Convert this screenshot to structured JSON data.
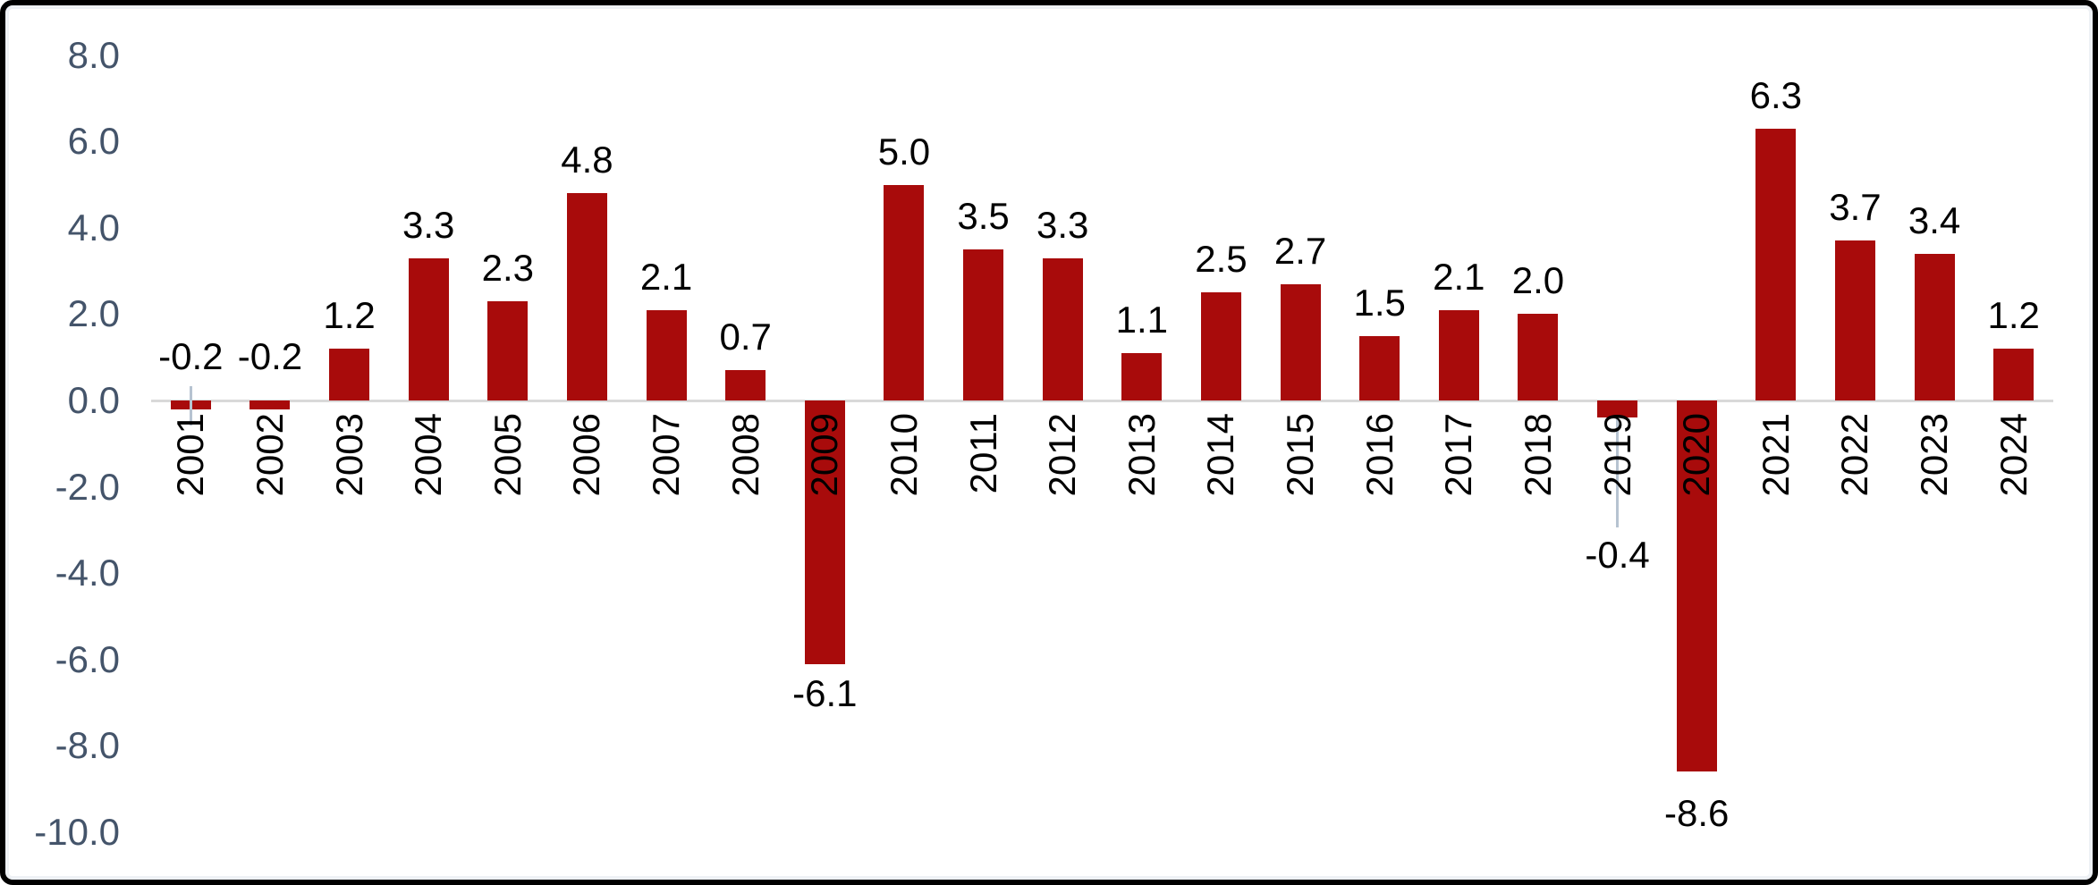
{
  "chart_data": {
    "type": "bar",
    "title": "",
    "xlabel": "",
    "ylabel": "",
    "categories": [
      "2001",
      "2002",
      "2003",
      "2004",
      "2005",
      "2006",
      "2007",
      "2008",
      "2009",
      "2010",
      "2011",
      "2012",
      "2013",
      "2014",
      "2015",
      "2016",
      "2017",
      "2018",
      "2019",
      "2020",
      "2021",
      "2022",
      "2023",
      "2024"
    ],
    "values": [
      -0.2,
      -0.2,
      1.2,
      3.3,
      2.3,
      4.8,
      2.1,
      0.7,
      -6.1,
      5.0,
      3.5,
      3.3,
      1.1,
      2.5,
      2.7,
      1.5,
      2.1,
      2.0,
      -0.4,
      -8.6,
      6.3,
      3.7,
      3.4,
      1.2
    ],
    "data_labels": [
      "-0.2",
      "-0.2",
      "1.2",
      "3.3",
      "2.3",
      "4.8",
      "2.1",
      "0.7",
      "-6.1",
      "5.0",
      "3.5",
      "3.3",
      "1.1",
      "2.5",
      "2.7",
      "1.5",
      "2.1",
      "2.0",
      "-0.4",
      "-8.6",
      "6.3",
      "3.7",
      "3.4",
      "1.2"
    ],
    "y_tick_values": [
      8,
      6,
      4,
      2,
      0,
      -2,
      -4,
      -6,
      -8,
      -10
    ],
    "y_tick_labels": [
      "8.0",
      "6.0",
      "4.0",
      "2.0",
      "0.0",
      "-2.0",
      "-4.0",
      "-6.0",
      "-8.0",
      "-10.0"
    ],
    "ylim": [
      -10,
      8
    ],
    "grid": false,
    "legend": false,
    "bar_color": "#A80B0B",
    "axis_line_color": "#D9D9D9",
    "y_tick_color": "#44546A",
    "data_label_color": "#000000",
    "leader_line_color": "#B6C3D1",
    "label_overrides": {
      "2001": {
        "position": "above-axis",
        "leader": true
      },
      "2002": {
        "position": "above-axis",
        "leader": false
      },
      "2019": {
        "position": "below-far",
        "leader": true
      }
    }
  }
}
